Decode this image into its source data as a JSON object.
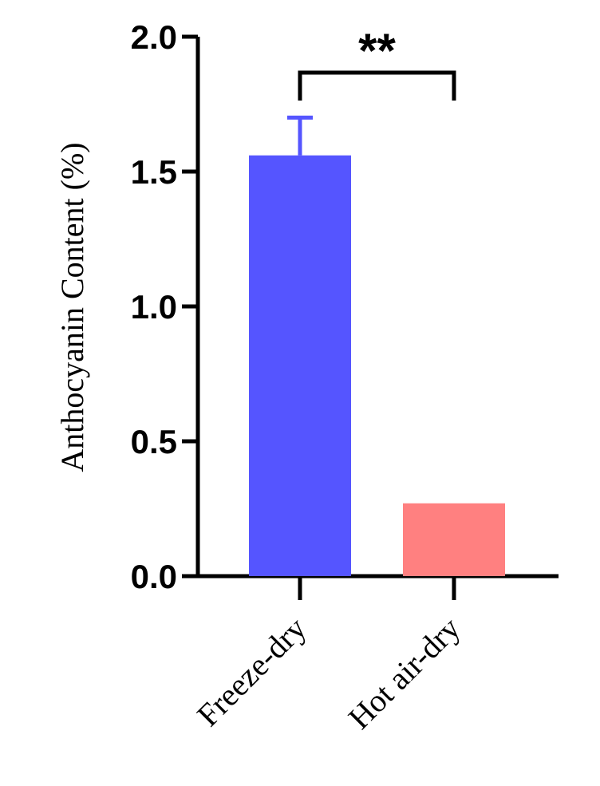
{
  "chart_data": {
    "type": "bar",
    "title": "",
    "xlabel": "",
    "ylabel": "Anthocyanin Content (%)",
    "ylim": [
      0,
      2.0
    ],
    "yticks": [
      "0.0",
      "0.5",
      "1.0",
      "1.5",
      "2.0"
    ],
    "ytick_values": [
      0,
      0.5,
      1.0,
      1.5,
      2.0
    ],
    "categories": [
      "Freeze-dry",
      "Hot air-dry"
    ],
    "values": [
      1.56,
      0.27
    ],
    "error_upper": [
      0.14,
      null
    ],
    "bar_colors": [
      "#5555ff",
      "#ff8080"
    ],
    "significance": {
      "label": "**",
      "between": [
        0,
        1
      ]
    },
    "grid": false,
    "legend": "none"
  }
}
